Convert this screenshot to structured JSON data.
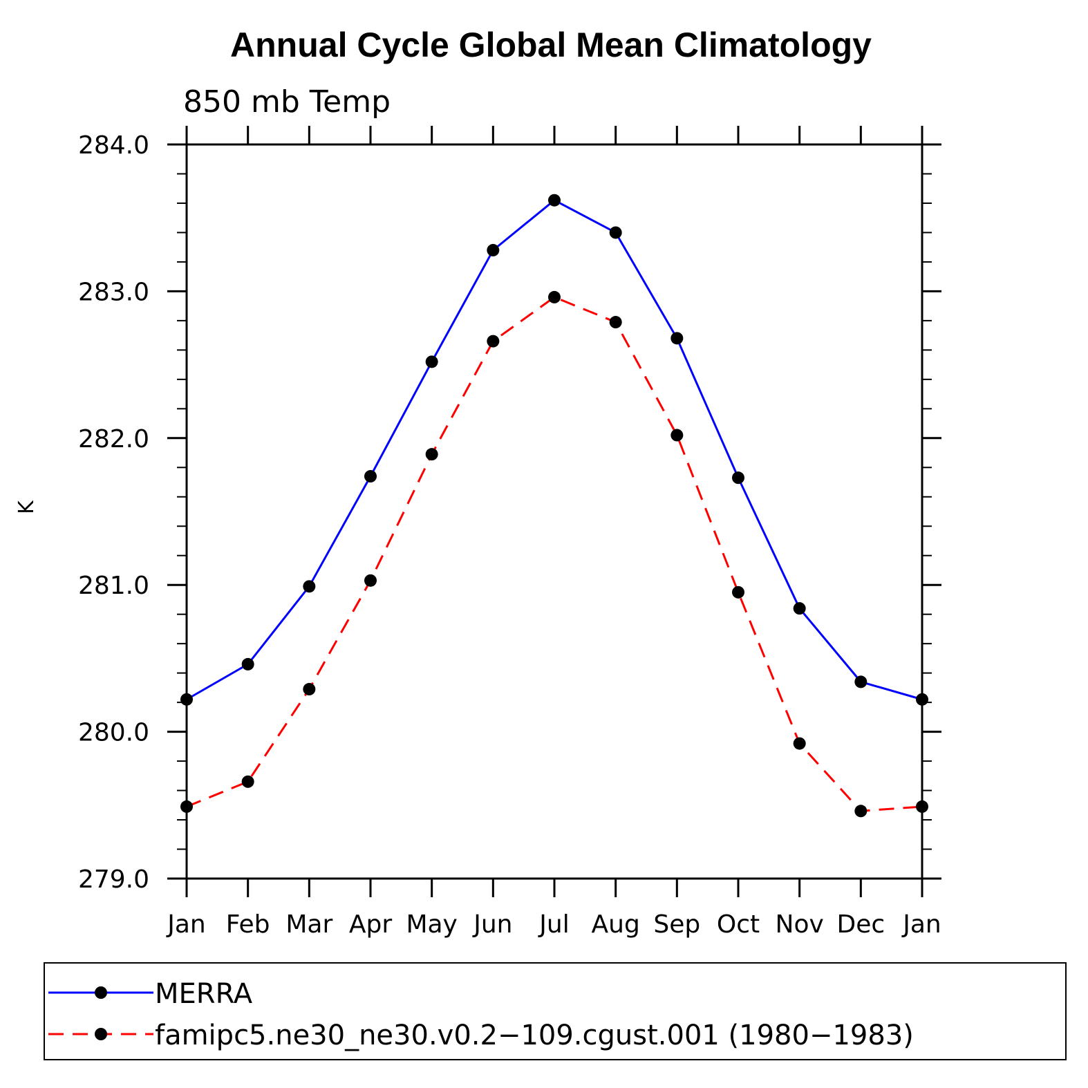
{
  "chart_data": {
    "type": "line",
    "title": "Annual Cycle Global Mean Climatology",
    "subtitle": "850 mb Temp",
    "ylabel": "K",
    "xlabel": "",
    "categories": [
      "Jan",
      "Feb",
      "Mar",
      "Apr",
      "May",
      "Jun",
      "Jul",
      "Aug",
      "Sep",
      "Oct",
      "Nov",
      "Dec",
      "Jan"
    ],
    "ylim": [
      279.0,
      284.0
    ],
    "yticks": [
      "279.0",
      "280.0",
      "281.0",
      "282.0",
      "283.0",
      "284.0"
    ],
    "y_tick_values": [
      279.0,
      280.0,
      281.0,
      282.0,
      283.0,
      284.0
    ],
    "y_minor_step": 0.2,
    "grid": false,
    "legend_position": "bottom",
    "series": [
      {
        "name": "MERRA",
        "color": "#0000ff",
        "line_style": "solid",
        "marker": "filled-circle",
        "values": [
          280.22,
          280.46,
          280.99,
          281.74,
          282.52,
          283.28,
          283.62,
          283.4,
          282.68,
          281.73,
          280.84,
          280.34,
          280.22
        ]
      },
      {
        "name": "famipc5.ne30_ne30.v0.2−109.cgust.001 (1980−1983)",
        "color": "#ff0000",
        "line_style": "dashed",
        "marker": "filled-circle",
        "values": [
          279.49,
          279.66,
          280.29,
          281.03,
          281.89,
          282.66,
          282.96,
          282.79,
          282.02,
          280.95,
          279.92,
          279.46,
          279.49
        ]
      }
    ]
  }
}
